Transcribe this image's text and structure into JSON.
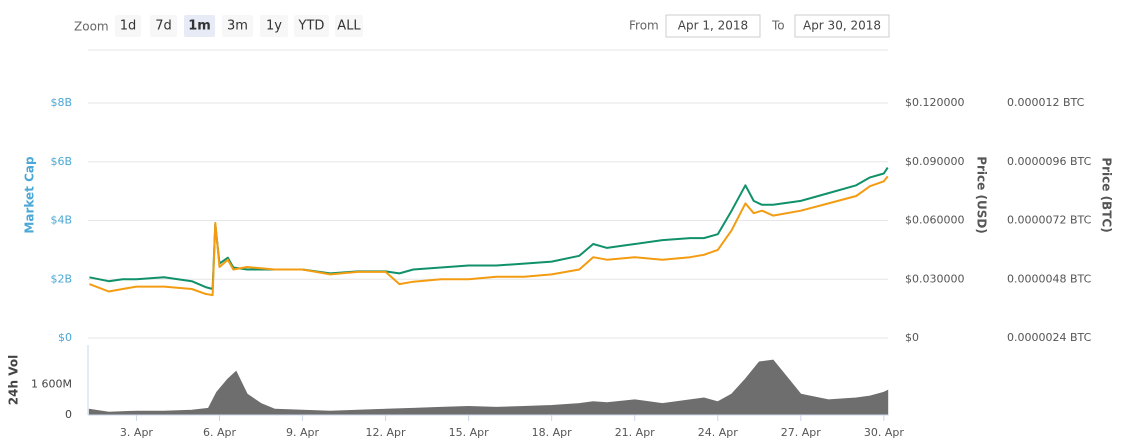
{
  "toolbar": {
    "zoom_label": "Zoom",
    "buttons": [
      "1d",
      "7d",
      "1m",
      "3m",
      "1y",
      "YTD",
      "ALL"
    ],
    "selected": "1m",
    "from_label": "From",
    "from": "Apr 1, 2018",
    "to_label": "To",
    "to": "Apr 30, 2018"
  },
  "chart_data": [
    {
      "type": "line",
      "ylabel": "Market Cap",
      "x": [
        1.3,
        2,
        2.5,
        3,
        4,
        5,
        5.5,
        5.75,
        5.85,
        6,
        6.3,
        6.5,
        7,
        8,
        9,
        10,
        11,
        12,
        12.5,
        13,
        14,
        15,
        16,
        17,
        18,
        19,
        19.5,
        20,
        21,
        22,
        23,
        23.5,
        24,
        24.5,
        25,
        25.3,
        25.6,
        26,
        27,
        28,
        29,
        29.5,
        30,
        30.14
      ],
      "xlim": [
        1.25,
        30.15
      ],
      "ylim": [
        0,
        8000000000
      ],
      "yticks": [
        {
          "value": 0,
          "label": "$0"
        },
        {
          "value": 2000000000,
          "label": "$2B"
        },
        {
          "value": 4000000000,
          "label": "$4B"
        },
        {
          "value": 6000000000,
          "label": "$6B"
        },
        {
          "value": 8000000000,
          "label": "$8B"
        }
      ],
      "y2lim": [
        0,
        0.12
      ],
      "y2ticks": [
        {
          "value": 0,
          "label": "$0"
        },
        {
          "value": 0.03,
          "label": "$0.030000"
        },
        {
          "value": 0.06,
          "label": "$0.060000"
        },
        {
          "value": 0.09,
          "label": "$0.090000"
        },
        {
          "value": 0.12,
          "label": "$0.120000"
        }
      ],
      "y3lim": [
        2.4e-06,
        1.2e-05
      ],
      "y3ticks": [
        {
          "value": 2.4e-06,
          "label": "0.0000024 BTC"
        },
        {
          "value": 4.8e-06,
          "label": "0.0000048 BTC"
        },
        {
          "value": 7.2e-06,
          "label": "0.0000072 BTC"
        },
        {
          "value": 9.6e-06,
          "label": "0.0000096 BTC"
        },
        {
          "value": 1.2e-05,
          "label": "0.000012 BTC"
        }
      ],
      "grid": true,
      "series": [
        {
          "name": "Price (USD)",
          "color": "#10916a",
          "axis": "y2",
          "values": [
            0.031,
            0.029,
            0.03,
            0.03,
            0.031,
            0.029,
            0.026,
            0.025,
            0.058,
            0.038,
            0.041,
            0.036,
            0.035,
            0.035,
            0.035,
            0.033,
            0.034,
            0.034,
            0.033,
            0.035,
            0.036,
            0.037,
            0.037,
            0.038,
            0.039,
            0.042,
            0.048,
            0.046,
            0.048,
            0.05,
            0.051,
            0.051,
            0.053,
            0.065,
            0.078,
            0.07,
            0.068,
            0.068,
            0.07,
            0.074,
            0.078,
            0.082,
            0.084,
            0.087
          ]
        },
        {
          "name": "Price (BTC)",
          "color": "#f39c12",
          "axis": "y3",
          "values": [
            4.6e-06,
            4.3e-06,
            4.4e-06,
            4.5e-06,
            4.5e-06,
            4.4e-06,
            4.2e-06,
            4.15e-06,
            7.1e-06,
            5.3e-06,
            5.6e-06,
            5.2e-06,
            5.3e-06,
            5.2e-06,
            5.2e-06,
            5e-06,
            5.1e-06,
            5.1e-06,
            4.6e-06,
            4.7e-06,
            4.8e-06,
            4.8e-06,
            4.9e-06,
            4.9e-06,
            5e-06,
            5.2e-06,
            5.7e-06,
            5.6e-06,
            5.7e-06,
            5.6e-06,
            5.7e-06,
            5.8e-06,
            6e-06,
            6.8e-06,
            7.9e-06,
            7.5e-06,
            7.6e-06,
            7.4e-06,
            7.6e-06,
            7.9e-06,
            8.2e-06,
            8.6e-06,
            8.8e-06,
            9e-06
          ]
        }
      ]
    },
    {
      "type": "area",
      "ylabel": "24h Vol",
      "color": "#6e6e6e",
      "x": [
        1.3,
        2,
        3,
        4,
        5,
        5.6,
        5.9,
        6.3,
        6.6,
        7,
        7.5,
        8,
        9,
        10,
        11,
        12,
        13,
        14,
        15,
        16,
        17,
        18,
        19,
        19.5,
        20,
        21,
        22,
        23,
        23.5,
        24,
        24.5,
        25,
        25.5,
        26,
        26.5,
        27,
        28,
        29,
        29.5,
        30,
        30.14
      ],
      "values": [
        300000000,
        150000000,
        200000000,
        200000000,
        250000000,
        350000000,
        1200000000,
        1900000000,
        2300000000,
        1100000000,
        600000000,
        300000000,
        250000000,
        200000000,
        250000000,
        300000000,
        350000000,
        400000000,
        450000000,
        400000000,
        450000000,
        500000000,
        600000000,
        700000000,
        650000000,
        800000000,
        600000000,
        800000000,
        900000000,
        700000000,
        1100000000,
        1900000000,
        2800000000,
        2900000000,
        2000000000,
        1100000000,
        800000000,
        900000000,
        1000000000,
        1200000000,
        1300000000
      ],
      "xlim": [
        1.25,
        30.15
      ],
      "ylim": [
        0,
        3700000000
      ],
      "yticks": [
        0,
        {
          "value": 1600000000,
          "label": "1 600M"
        }
      ],
      "xticks": [
        {
          "value": 3,
          "label": "3. Apr"
        },
        {
          "value": 6,
          "label": "6. Apr"
        },
        {
          "value": 9,
          "label": "9. Apr"
        },
        {
          "value": 12,
          "label": "12. Apr"
        },
        {
          "value": 15,
          "label": "15. Apr"
        },
        {
          "value": 18,
          "label": "18. Apr"
        },
        {
          "value": 21,
          "label": "21. Apr"
        },
        {
          "value": 24,
          "label": "24. Apr"
        },
        {
          "value": 27,
          "label": "27. Apr"
        },
        {
          "value": 30,
          "label": "30. Apr"
        }
      ]
    }
  ]
}
